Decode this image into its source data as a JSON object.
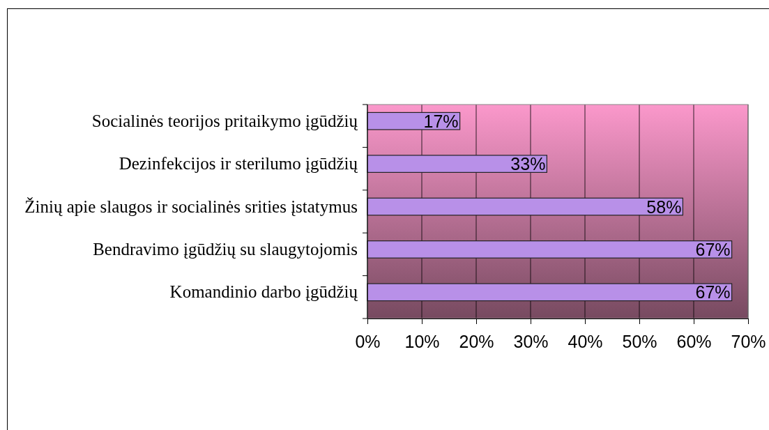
{
  "chart_data": {
    "type": "bar",
    "orientation": "horizontal",
    "categories": [
      "Socialinės teorijos pritaikymo įgūdžių",
      "Dezinfekcijos ir sterilumo įgūdžių",
      "Žinių apie slaugos ir socialinės srities įstatymus",
      "Bendravimo įgūdžių su slaugytojomis",
      "Komandinio darbo įgūdžių"
    ],
    "values": [
      17,
      33,
      58,
      67,
      67
    ],
    "value_labels": [
      "17%",
      "33%",
      "58%",
      "67%",
      "67%"
    ],
    "color": "#b890e8",
    "xlim": [
      0,
      70
    ],
    "xticks": [
      {
        "value": 0,
        "label": "0%"
      },
      {
        "value": 10,
        "label": "10%"
      },
      {
        "value": 20,
        "label": "20%"
      },
      {
        "value": 30,
        "label": "30%"
      },
      {
        "value": 40,
        "label": "40%"
      },
      {
        "value": 50,
        "label": "50%"
      },
      {
        "value": 60,
        "label": "60%"
      },
      {
        "value": 70,
        "label": "70%"
      }
    ],
    "grid": "x"
  }
}
